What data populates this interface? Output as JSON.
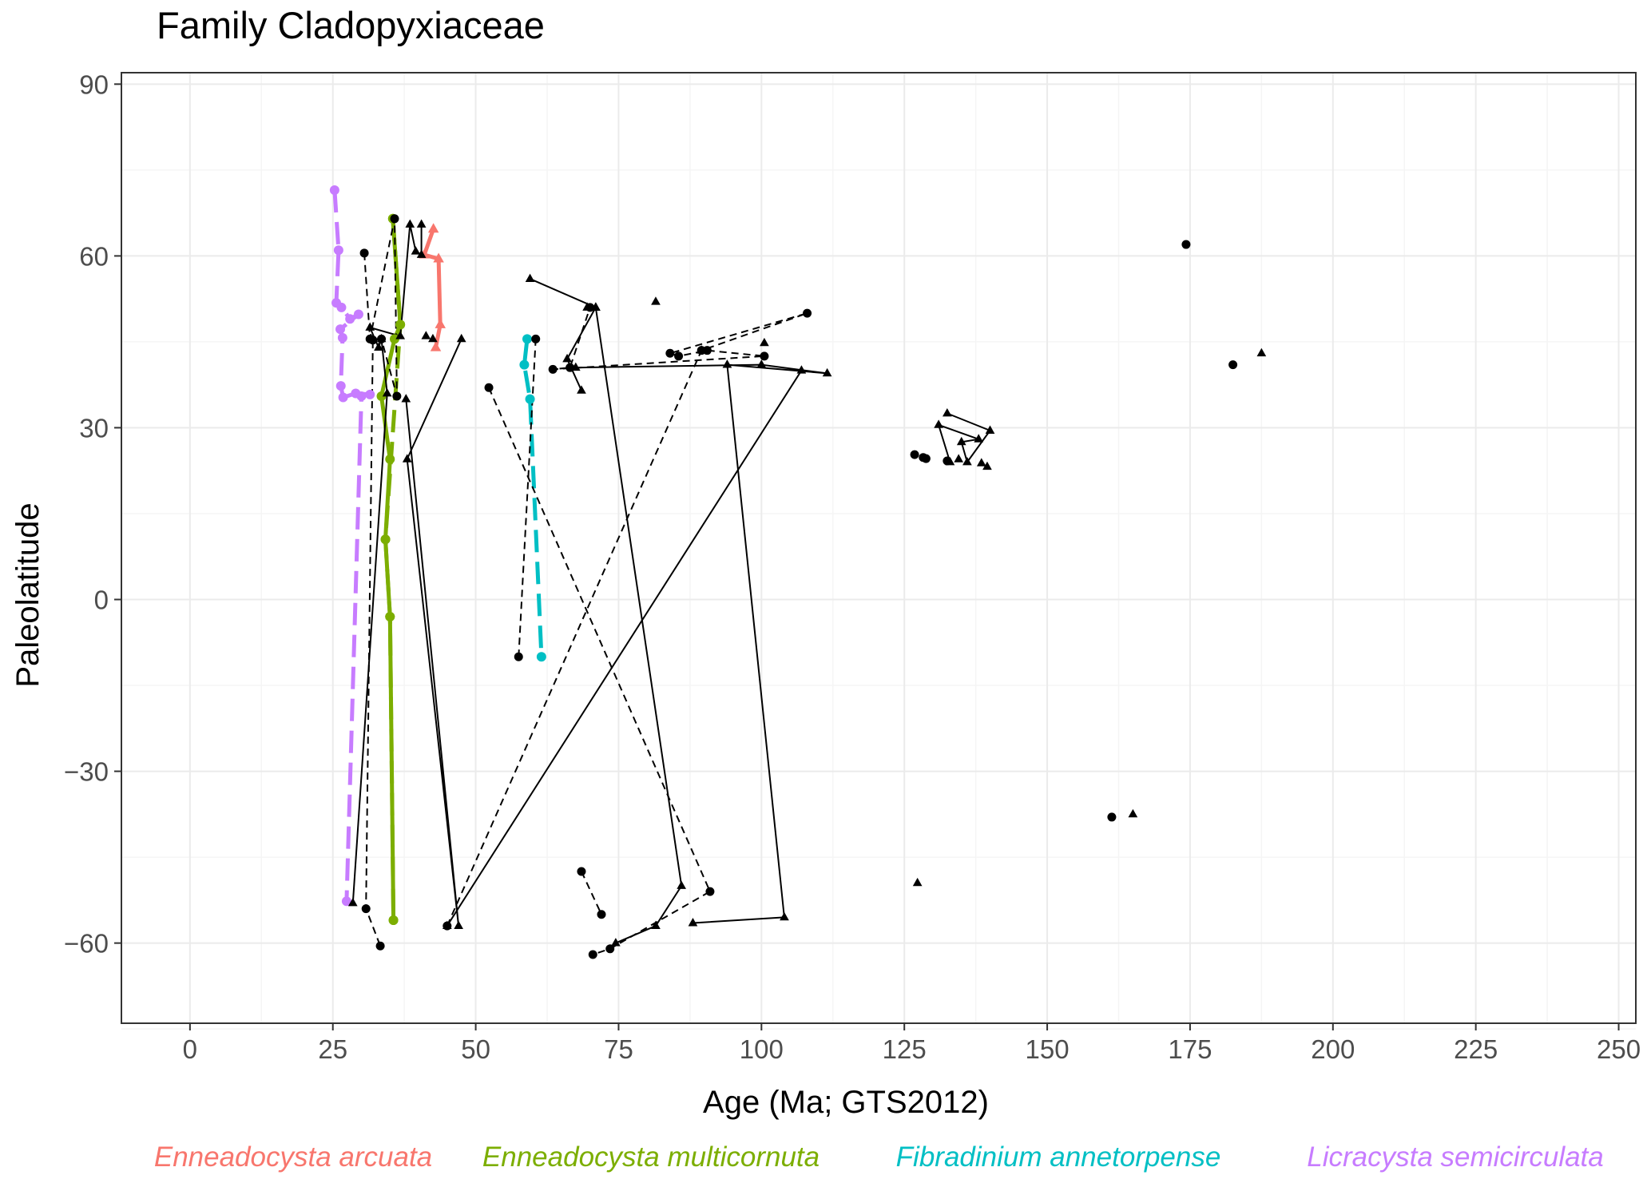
{
  "chart_data": {
    "type": "scatter",
    "title": "Family Cladopyxiaceae",
    "xlabel": "Age (Ma; GTS2012)",
    "ylabel": "Paleolatitude",
    "xlim": [
      -12,
      253
    ],
    "ylim": [
      -74,
      92
    ],
    "x_ticks": [
      0,
      25,
      50,
      75,
      100,
      125,
      150,
      175,
      200,
      225,
      250
    ],
    "x_tick_labels": [
      "0",
      "25",
      "50",
      "75",
      "100",
      "125",
      "150",
      "175",
      "200",
      "225",
      "250"
    ],
    "y_ticks": [
      -60,
      -30,
      0,
      30,
      60,
      90
    ],
    "y_tick_labels": [
      "−60",
      "−30",
      "0",
      "30",
      "60",
      "90"
    ],
    "grid": true,
    "legend_position": "bottom",
    "colors": {
      "panel_border": "#333333",
      "grid_major": "#ebebeb",
      "grid_minor": "#f5f5f5",
      "black_series": "#000000"
    },
    "legend": [
      {
        "label": "Enneadocysta arcuata",
        "color": "#f8766d"
      },
      {
        "label": "Enneadocysta multicornuta",
        "color": "#7cae00"
      },
      {
        "label": "Fibradinium annetorpense",
        "color": "#00bfc4"
      },
      {
        "label": "Licracysta semicirculata",
        "color": "#c77cff"
      }
    ],
    "series": [
      {
        "name": "Enneadocysta arcuata",
        "color": "#f8766d",
        "line": "solid",
        "marker": "triangle",
        "x": [
          42.6,
          41.0,
          43.5,
          43.8,
          43.0
        ],
        "y": [
          64.7,
          60.2,
          59.5,
          48.0,
          44.0
        ]
      },
      {
        "name": "Enneadocysta multicornuta",
        "color": "#7cae00",
        "line": "solid",
        "marker": "circle",
        "x": [
          35.5,
          36.8,
          35.8,
          33.5,
          35.0,
          34.2,
          35.0,
          35.6
        ],
        "y": [
          66.5,
          48.0,
          45.5,
          35.5,
          24.5,
          10.5,
          -3.0,
          -56.0
        ]
      },
      {
        "name": "Enneadocysta multicornuta",
        "color": "#7cae00",
        "line": "dashed",
        "marker": "circle",
        "x": [
          35.5,
          36.8,
          34.2,
          35.0,
          35.6
        ],
        "y": [
          66.5,
          48.0,
          10.5,
          -3.0,
          -56.0
        ]
      },
      {
        "name": "Fibradinium annetorpense",
        "color": "#00bfc4",
        "line": "dashed",
        "marker": "circle",
        "x": [
          59.0,
          58.5,
          59.5,
          61.5
        ],
        "y": [
          45.5,
          41.0,
          35.0,
          -10.0
        ]
      },
      {
        "name": "Licracysta semicirculata",
        "color": "#c77cff",
        "line": "dashed",
        "marker": "circle",
        "x": [
          25.3,
          26.0,
          25.6,
          26.5,
          28.0,
          29.5,
          26.3,
          26.7,
          26.4,
          26.8,
          29.0,
          31.5,
          30.0,
          27.4
        ],
        "y": [
          71.5,
          61.0,
          51.8,
          51.0,
          49.0,
          49.8,
          47.2,
          45.7,
          37.3,
          35.3,
          36.0,
          35.8,
          35.5,
          -52.7
        ]
      },
      {
        "name": "",
        "color": "#000000",
        "line": "solid",
        "marker": "triangle",
        "x": [
          40.5,
          40.5,
          39.5,
          38.5,
          36.8,
          31.5,
          33.0,
          33.5,
          34.5,
          28.5
        ],
        "y": [
          65.5,
          60.2,
          60.8,
          65.5,
          46.0,
          47.5,
          44.0,
          45.5,
          36.0,
          -53.0
        ]
      },
      {
        "name": "",
        "color": "#000000",
        "line": "solid",
        "marker": "triangle",
        "x": [
          47.5,
          38.0,
          47.0,
          37.8
        ],
        "y": [
          45.5,
          24.5,
          -57.0,
          35.0
        ]
      },
      {
        "name": "",
        "color": "#000000",
        "line": "dashed",
        "marker": "circle",
        "x": [
          30.5,
          31.5,
          35.8,
          36.2,
          33.5,
          32.0,
          30.8,
          33.3
        ],
        "y": [
          60.5,
          45.5,
          66.5,
          35.5,
          45.5,
          45.3,
          -54.0,
          -60.5
        ]
      },
      {
        "name": "",
        "color": "#000000",
        "line": "solid",
        "marker": "triangle",
        "x": [
          59.5,
          71.0,
          69.5,
          71.0,
          66.0,
          68.5
        ],
        "y": [
          56.0,
          51.0,
          51.0,
          51.0,
          42.0,
          36.5
        ]
      },
      {
        "name": "",
        "color": "#000000",
        "line": "solid",
        "marker": "triangle",
        "x": [
          71.0,
          86.0,
          81.5,
          74.5
        ],
        "y": [
          51.0,
          -50.0,
          -57.0,
          -60.0
        ]
      },
      {
        "name": "",
        "color": "#000000",
        "line": "solid",
        "marker": "triangle",
        "x": [
          67.5,
          100.0,
          111.5,
          94.0,
          104.0,
          88.0
        ],
        "y": [
          40.5,
          41.0,
          39.5,
          41.0,
          -55.5,
          -56.5
        ]
      },
      {
        "name": "",
        "color": "#000000",
        "line": "solid",
        "marker": "triangle",
        "x": [
          45.0,
          107.0
        ],
        "y": [
          -57.0,
          40.0
        ]
      },
      {
        "name": "",
        "color": "#000000",
        "line": "dashed",
        "marker": "circle",
        "x": [
          45.0,
          89.5,
          108.0,
          84.0,
          85.5,
          90.5,
          100.5,
          63.5,
          66.5,
          70.0
        ],
        "y": [
          -57.0,
          43.5,
          50.0,
          43.0,
          42.5,
          43.5,
          42.5,
          40.2,
          40.5,
          51.0
        ]
      },
      {
        "name": "",
        "color": "#000000",
        "line": "dashed",
        "marker": "circle",
        "x": [
          52.3,
          91.0,
          73.5,
          70.5
        ],
        "y": [
          37.0,
          -51.0,
          -61.0,
          -62.0
        ]
      },
      {
        "name": "",
        "color": "#000000",
        "line": "dashed",
        "marker": "circle",
        "x": [
          57.5,
          60.5
        ],
        "y": [
          -10.0,
          45.5
        ]
      },
      {
        "name": "",
        "color": "#000000",
        "line": "dashed",
        "marker": "circle",
        "x": [
          68.5,
          72.0
        ],
        "y": [
          -47.5,
          -55.0
        ]
      },
      {
        "name": "",
        "color": "#000000",
        "line": "solid",
        "marker": "triangle",
        "x": [
          132.5,
          140.0,
          136.0,
          135.0,
          138.0,
          131.0,
          133.0
        ],
        "y": [
          32.5,
          29.5,
          24.0,
          27.5,
          28.0,
          30.5,
          24.0
        ]
      },
      {
        "name": "",
        "color": "#000000",
        "line": "none",
        "marker": "circle",
        "x": [
          126.8,
          128.3,
          128.8,
          132.5,
          174.3,
          182.5,
          161.3
        ],
        "y": [
          25.3,
          24.8,
          24.6,
          24.2,
          62.0,
          41.0,
          -38.0
        ]
      },
      {
        "name": "",
        "color": "#000000",
        "line": "none",
        "marker": "triangle",
        "x": [
          81.5,
          100.5,
          89.5,
          138.5,
          139.5,
          134.5,
          187.5,
          165.0,
          127.3,
          42.5,
          41.3
        ],
        "y": [
          52.0,
          44.8,
          43.5,
          23.8,
          23.2,
          24.5,
          43.0,
          -37.5,
          -49.5,
          45.5,
          46.0
        ]
      }
    ]
  }
}
